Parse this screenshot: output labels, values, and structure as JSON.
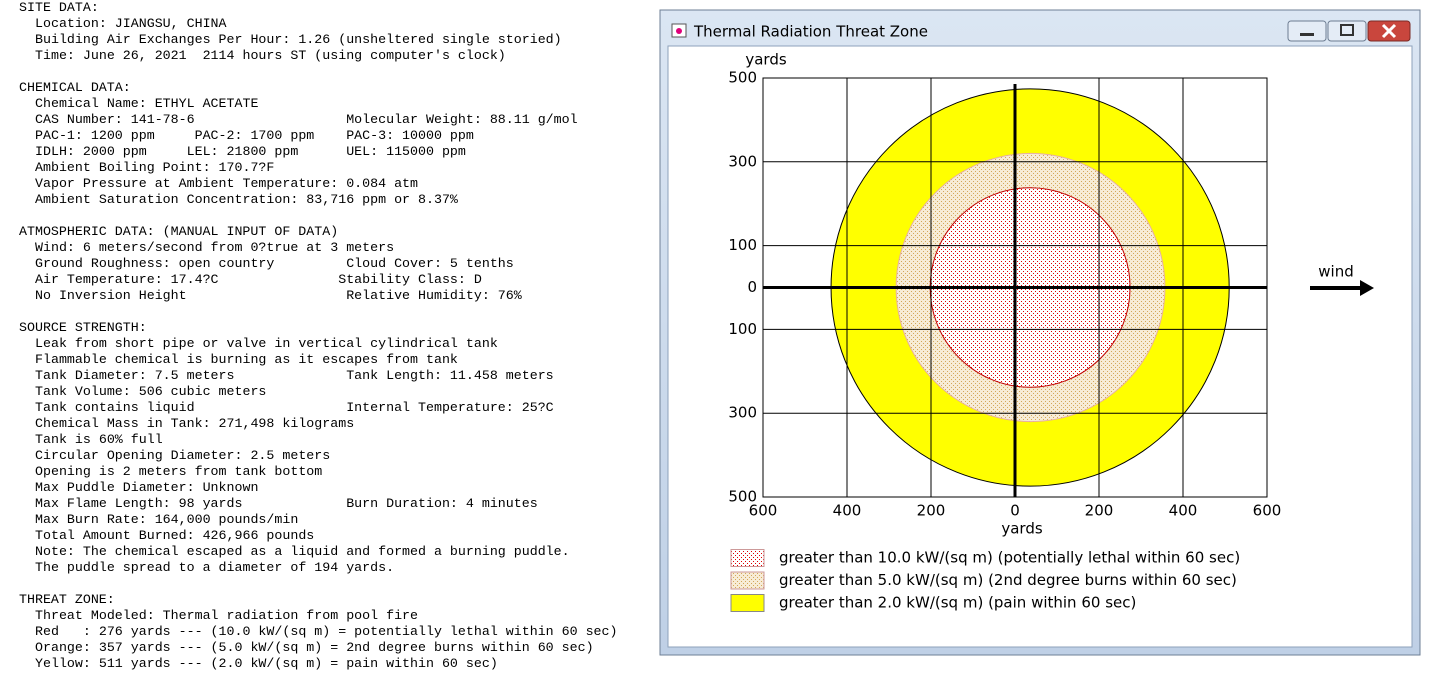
{
  "report": {
    "sections": [
      {
        "heading": "SITE DATA:",
        "lines": [
          "Location: JIANGSU, CHINA",
          "Building Air Exchanges Per Hour: 1.26 (unsheltered single storied)",
          "Time: June 26, 2021  2114 hours ST (using computer's clock)"
        ]
      },
      {
        "heading": "CHEMICAL DATA:",
        "lines": [
          "Chemical Name: ETHYL ACETATE",
          "CAS Number: 141-78-6                   Molecular Weight: 88.11 g/mol",
          "PAC-1: 1200 ppm     PAC-2: 1700 ppm    PAC-3: 10000 ppm",
          "IDLH: 2000 ppm     LEL: 21800 ppm      UEL: 115000 ppm",
          "Ambient Boiling Point: 170.7?F",
          "Vapor Pressure at Ambient Temperature: 0.084 atm",
          "Ambient Saturation Concentration: 83,716 ppm or 8.37%"
        ]
      },
      {
        "heading": "ATMOSPHERIC DATA: (MANUAL INPUT OF DATA)",
        "lines": [
          "Wind: 6 meters/second from 0?true at 3 meters",
          "Ground Roughness: open country         Cloud Cover: 5 tenths",
          "Air Temperature: 17.4?C               Stability Class: D",
          "No Inversion Height                    Relative Humidity: 76%"
        ]
      },
      {
        "heading": "SOURCE STRENGTH:",
        "lines": [
          "Leak from short pipe or valve in vertical cylindrical tank",
          "Flammable chemical is burning as it escapes from tank",
          "Tank Diameter: 7.5 meters              Tank Length: 11.458 meters",
          "Tank Volume: 506 cubic meters",
          "Tank contains liquid                   Internal Temperature: 25?C",
          "Chemical Mass in Tank: 271,498 kilograms",
          "Tank is 60% full",
          "Circular Opening Diameter: 2.5 meters",
          "Opening is 2 meters from tank bottom",
          "Max Puddle Diameter: Unknown",
          "Max Flame Length: 98 yards             Burn Duration: 4 minutes",
          "Max Burn Rate: 164,000 pounds/min",
          "Total Amount Burned: 426,966 pounds",
          "Note: The chemical escaped as a liquid and formed a burning puddle.",
          "The puddle spread to a diameter of 194 yards."
        ]
      },
      {
        "heading": "THREAT ZONE:",
        "lines": [
          "Threat Modeled: Thermal radiation from pool fire",
          "Red   : 276 yards --- (10.0 kW/(sq m) = potentially lethal within 60 sec)",
          "Orange: 357 yards --- (5.0 kW/(sq m) = 2nd degree burns within 60 sec)",
          "Yellow: 511 yards --- (2.0 kW/(sq m) = pain within 60 sec)"
        ]
      }
    ]
  },
  "chart_data": {
    "type": "threat-zone",
    "title": "Thermal Radiation Threat Zone",
    "xlabel": "yards",
    "ylabel": "yards",
    "annotation": "wind",
    "xlim": [
      -600,
      600
    ],
    "ylim": [
      -500,
      500
    ],
    "xticks": [
      {
        "value": -600,
        "label": "600"
      },
      {
        "value": -400,
        "label": "400"
      },
      {
        "value": -200,
        "label": "200"
      },
      0,
      200,
      400,
      600
    ],
    "yticks": [
      {
        "value": -500,
        "label": "500"
      },
      {
        "value": -300,
        "label": "300"
      },
      {
        "value": -100,
        "label": "100"
      },
      0,
      100,
      300,
      500
    ],
    "grid": true,
    "zones": [
      {
        "name": "greater than 10.0 kW/(sq m) (potentially lethal within 60 sec)",
        "color": "#e00000",
        "hatch": "dots",
        "center_x": 36,
        "radius": 238
      },
      {
        "name": "greater than 5.0 kW/(sq m) (2nd degree burns within 60 sec)",
        "color": "#d4a65a",
        "hatch": "dots",
        "center_x": 37,
        "radius": 320
      },
      {
        "name": "greater than 2.0 kW/(sq m) (pain within 60 sec)",
        "color": "#ffff00",
        "hatch": "none",
        "center_x": 36,
        "radius": 474
      }
    ]
  }
}
